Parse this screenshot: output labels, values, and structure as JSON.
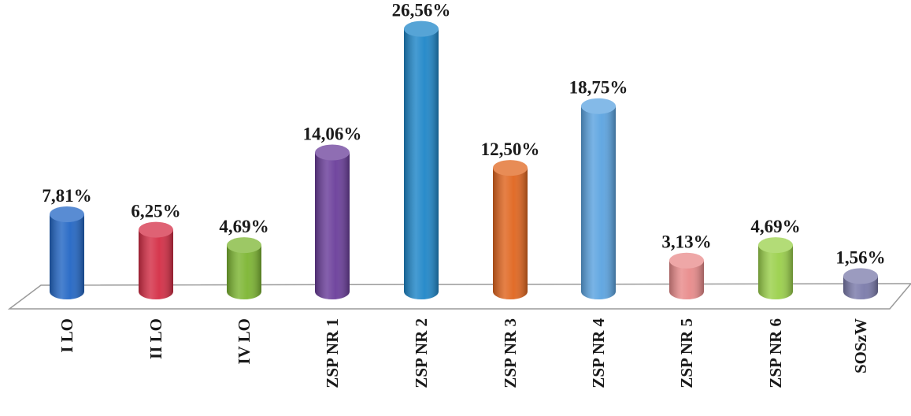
{
  "chart_data": {
    "type": "bar",
    "title": "",
    "xlabel": "",
    "ylabel": "",
    "ylim": [
      0,
      30
    ],
    "grid": false,
    "legend": "none",
    "categories": [
      "I LO",
      "II LO",
      "IV LO",
      "ZSP NR 1",
      "ZSP NR 2",
      "ZSP NR 3",
      "ZSP NR 4",
      "ZSP NR 5",
      "ZSP NR 6",
      "SOSzW"
    ],
    "values": [
      7.81,
      6.25,
      4.69,
      14.06,
      26.56,
      12.5,
      18.75,
      3.13,
      4.69,
      1.56
    ],
    "value_labels": [
      "7,81%",
      "6,25%",
      "4,69%",
      "14,06%",
      "26,56%",
      "12,50%",
      "18,75%",
      "3,13%",
      "4,69%",
      "1,56%"
    ],
    "colors": [
      "#2266c4",
      "#d42d45",
      "#7cb531",
      "#6a3d9a",
      "#1e86c8",
      "#e0651e",
      "#5ba3e0",
      "#e88a8a",
      "#9ad04a",
      "#7a7aaa"
    ]
  }
}
